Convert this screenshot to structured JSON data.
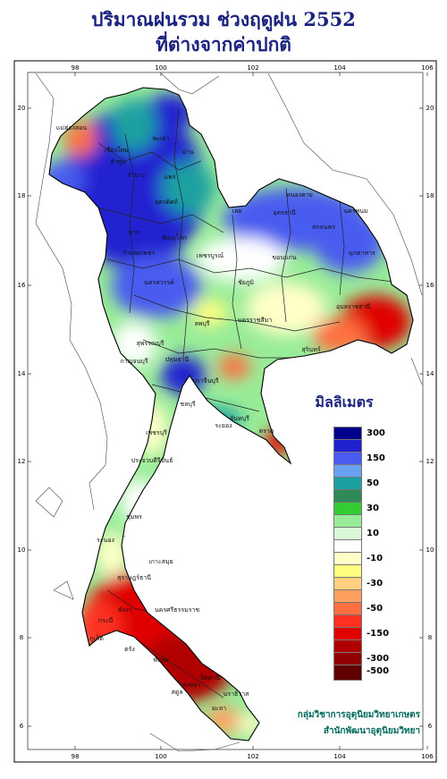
{
  "title": {
    "line1": "ปริมาณฝนรวม ช่วงฤดูฝน 2552",
    "line2": "ที่ต่างจากค่าปกติ"
  },
  "axes": {
    "lon_ticks": [
      "98",
      "100",
      "102",
      "104",
      "106"
    ],
    "lat_ticks": [
      "20",
      "18",
      "16",
      "14",
      "12",
      "10",
      "8",
      "6"
    ]
  },
  "legend": {
    "title": "มิลลิเมตร",
    "items": [
      {
        "label": "300",
        "color": "#00008b"
      },
      {
        "label": "",
        "color": "#2020d0"
      },
      {
        "label": "150",
        "color": "#4a5cf0"
      },
      {
        "label": "",
        "color": "#6aa0f0"
      },
      {
        "label": "50",
        "color": "#1aa0a0"
      },
      {
        "label": "",
        "color": "#2e8b57"
      },
      {
        "label": "30",
        "color": "#32cd32"
      },
      {
        "label": "",
        "color": "#98ec98"
      },
      {
        "label": "10",
        "color": "#d8f8d8"
      },
      {
        "label": "",
        "color": "#ffffff"
      },
      {
        "label": "-10",
        "color": "#ffffc8"
      },
      {
        "label": "",
        "color": "#ffff80"
      },
      {
        "label": "-30",
        "color": "#ffd080"
      },
      {
        "label": "",
        "color": "#ffa060"
      },
      {
        "label": "-50",
        "color": "#ff7040"
      },
      {
        "label": "",
        "color": "#ff3020"
      },
      {
        "label": "-150",
        "color": "#e00000"
      },
      {
        "label": "",
        "color": "#b00000"
      },
      {
        "label": "-300",
        "color": "#900000"
      },
      {
        "label": "-500",
        "color": "#600000"
      }
    ]
  },
  "provinces": [
    "เชียงใหม่",
    "ลำพูน",
    "ลำปาง",
    "พะเยา",
    "น่าน",
    "แพร่",
    "อุตรดิตถ์",
    "ตาก",
    "พิษณุโลก",
    "กำแพงเพชร",
    "นครสวรรค์",
    "เพชรบูรณ์",
    "หนองคาย",
    "อุดรธานี",
    "นครพนม",
    "สกลนคร",
    "มุกดาหาร",
    "ขอนแก่น",
    "ชัยภูมิ",
    "นครราชสีมา",
    "อุบลราชธานี",
    "สุรินทร์",
    "ลพบุรี",
    "สุพรรณบุรี",
    "กาญจนบุรี",
    "ปทุมธานี",
    "ปราจีนบุรี",
    "ชลบุรี",
    "ระยอง",
    "จันทบุรี",
    "ตราด",
    "เพชรบุรี",
    "ประจวบคีรีขันธ์",
    "ชุมพร",
    "ระนอง",
    "สุราษฎร์ธานี",
    "นครศรีธรรมราช",
    "กระบี่",
    "ภูเก็ต",
    "พังงา",
    "ตรัง",
    "พัทลุง",
    "สงขลา",
    "สตูล",
    "ปัตตานี",
    "ยะลา",
    "นราธิวาส",
    "เกาะสมุย",
    "แม่ฮ่องสอน",
    "เลย"
  ],
  "credits": {
    "line1": "กลุ่มวิชาการอุตุนิยมวิทยาเกษตร",
    "line2": "สำนักพัฒนาอุตุนิยมวิทยา"
  }
}
